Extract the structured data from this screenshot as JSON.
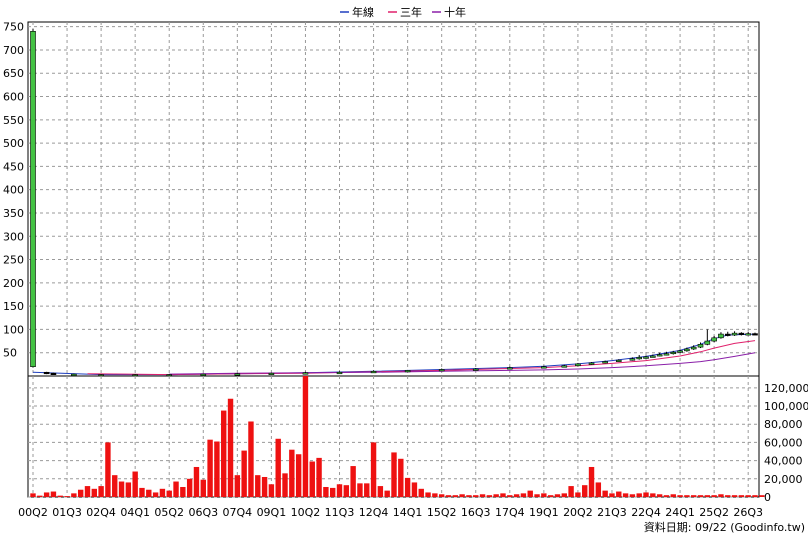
{
  "chart_data": [
    {
      "type": "candlestick",
      "legend": [
        {
          "name": "年線",
          "color": "#1f3fbf"
        },
        {
          "name": "三年",
          "color": "#e0206b"
        },
        {
          "name": "十年",
          "color": "#8a1fa8"
        }
      ],
      "ylim": [
        0,
        760
      ],
      "yticks": [
        50,
        100,
        150,
        200,
        250,
        300,
        350,
        400,
        450,
        500,
        550,
        600,
        650,
        700,
        750
      ],
      "up_color": "#44c244",
      "down_color": "#000000",
      "candles": [
        {
          "q": 0,
          "open": 20,
          "close": 740,
          "high": 745,
          "low": 18
        },
        {
          "q": 2,
          "open": 8,
          "close": 6,
          "high": 9,
          "low": 4
        },
        {
          "q": 3,
          "open": 6,
          "close": 5,
          "high": 7,
          "low": 4
        },
        {
          "q": 6,
          "open": 4,
          "close": 4,
          "high": 5,
          "low": 3
        },
        {
          "q": 10,
          "open": 3,
          "close": 3,
          "high": 4,
          "low": 2
        },
        {
          "q": 15,
          "open": 3,
          "close": 3,
          "high": 4,
          "low": 2
        },
        {
          "q": 20,
          "open": 3,
          "close": 3,
          "high": 4,
          "low": 2
        },
        {
          "q": 25,
          "open": 3,
          "close": 4,
          "high": 5,
          "low": 2
        },
        {
          "q": 30,
          "open": 4,
          "close": 5,
          "high": 6,
          "low": 3
        },
        {
          "q": 35,
          "open": 5,
          "close": 6,
          "high": 7,
          "low": 4
        },
        {
          "q": 40,
          "open": 6,
          "close": 7,
          "high": 9,
          "low": 5
        },
        {
          "q": 45,
          "open": 7,
          "close": 8,
          "high": 10,
          "low": 6
        },
        {
          "q": 50,
          "open": 9,
          "close": 10,
          "high": 12,
          "low": 8
        },
        {
          "q": 55,
          "open": 10,
          "close": 12,
          "high": 13,
          "low": 9
        },
        {
          "q": 60,
          "open": 12,
          "close": 14,
          "high": 16,
          "low": 11
        },
        {
          "q": 65,
          "open": 14,
          "close": 15,
          "high": 17,
          "low": 13
        },
        {
          "q": 70,
          "open": 16,
          "close": 18,
          "high": 20,
          "low": 15
        },
        {
          "q": 75,
          "open": 18,
          "close": 20,
          "high": 22,
          "low": 17
        },
        {
          "q": 78,
          "open": 20,
          "close": 22,
          "high": 24,
          "low": 19
        },
        {
          "q": 80,
          "open": 22,
          "close": 26,
          "high": 28,
          "low": 21
        },
        {
          "q": 82,
          "open": 25,
          "close": 28,
          "high": 30,
          "low": 24
        },
        {
          "q": 84,
          "open": 28,
          "close": 31,
          "high": 33,
          "low": 27
        },
        {
          "q": 86,
          "open": 31,
          "close": 34,
          "high": 36,
          "low": 30
        },
        {
          "q": 88,
          "open": 34,
          "close": 37,
          "high": 40,
          "low": 33
        },
        {
          "q": 89,
          "open": 37,
          "close": 40,
          "high": 45,
          "low": 35
        },
        {
          "q": 90,
          "open": 40,
          "close": 41,
          "high": 44,
          "low": 38
        },
        {
          "q": 91,
          "open": 41,
          "close": 43,
          "high": 46,
          "low": 40
        },
        {
          "q": 92,
          "open": 44,
          "close": 46,
          "high": 50,
          "low": 42
        },
        {
          "q": 93,
          "open": 46,
          "close": 48,
          "high": 52,
          "low": 44
        },
        {
          "q": 94,
          "open": 48,
          "close": 51,
          "high": 54,
          "low": 46
        },
        {
          "q": 95,
          "open": 51,
          "close": 54,
          "high": 57,
          "low": 49
        },
        {
          "q": 96,
          "open": 54,
          "close": 58,
          "high": 61,
          "low": 52
        },
        {
          "q": 97,
          "open": 58,
          "close": 62,
          "high": 66,
          "low": 56
        },
        {
          "q": 98,
          "open": 62,
          "close": 68,
          "high": 72,
          "low": 60
        },
        {
          "q": 99,
          "open": 68,
          "close": 75,
          "high": 100,
          "low": 66
        },
        {
          "q": 100,
          "open": 75,
          "close": 82,
          "high": 86,
          "low": 73
        },
        {
          "q": 101,
          "open": 82,
          "close": 90,
          "high": 94,
          "low": 80
        },
        {
          "q": 102,
          "open": 90,
          "close": 88,
          "high": 95,
          "low": 85
        },
        {
          "q": 103,
          "open": 88,
          "close": 92,
          "high": 96,
          "low": 86
        },
        {
          "q": 104,
          "open": 92,
          "close": 90,
          "high": 94,
          "low": 87
        },
        {
          "q": 105,
          "open": 90,
          "close": 91,
          "high": 95,
          "low": 88
        },
        {
          "q": 106,
          "open": 91,
          "close": 90,
          "high": 93,
          "low": 88
        }
      ],
      "ma_lines": [
        {
          "name": "年線",
          "color": "#1f3fbf",
          "points": [
            [
              0,
              8
            ],
            [
              10,
              3
            ],
            [
              20,
              3
            ],
            [
              30,
              5
            ],
            [
              40,
              7
            ],
            [
              50,
              10
            ],
            [
              60,
              14
            ],
            [
              70,
              18
            ],
            [
              75,
              21
            ],
            [
              80,
              26
            ],
            [
              85,
              33
            ],
            [
              90,
              42
            ],
            [
              95,
              55
            ],
            [
              98,
              68
            ],
            [
              100,
              80
            ],
            [
              102,
              88
            ],
            [
              106,
              90
            ]
          ]
        },
        {
          "name": "三年",
          "color": "#e0206b",
          "points": [
            [
              8,
              5
            ],
            [
              20,
              3
            ],
            [
              30,
              5
            ],
            [
              40,
              6
            ],
            [
              50,
              9
            ],
            [
              60,
              12
            ],
            [
              70,
              16
            ],
            [
              75,
              18
            ],
            [
              80,
              22
            ],
            [
              85,
              27
            ],
            [
              90,
              33
            ],
            [
              95,
              43
            ],
            [
              98,
              52
            ],
            [
              100,
              60
            ],
            [
              103,
              70
            ],
            [
              106,
              76
            ]
          ]
        },
        {
          "name": "十年",
          "color": "#8a1fa8",
          "points": [
            [
              20,
              4
            ],
            [
              30,
              6
            ],
            [
              40,
              7
            ],
            [
              50,
              8
            ],
            [
              60,
              10
            ],
            [
              70,
              12
            ],
            [
              75,
              13
            ],
            [
              80,
              15
            ],
            [
              85,
              18
            ],
            [
              90,
              22
            ],
            [
              95,
              27
            ],
            [
              98,
              31
            ],
            [
              100,
              35
            ],
            [
              103,
              42
            ],
            [
              106,
              50
            ]
          ]
        }
      ]
    },
    {
      "type": "bar",
      "ylim": [
        0,
        133000
      ],
      "yticks": [
        "0",
        "20,000",
        "40,000",
        "60,000",
        "80,000",
        "100,000",
        "120,000"
      ],
      "ytick_values": [
        0,
        20000,
        40000,
        60000,
        80000,
        100000,
        120000
      ],
      "bar_color": "#ee1111",
      "values": [
        4000,
        1500,
        5000,
        6000,
        1500,
        1000,
        4000,
        8000,
        12000,
        9000,
        12000,
        60000,
        24000,
        17000,
        16000,
        28000,
        10000,
        8000,
        5000,
        9000,
        7000,
        17000,
        11000,
        20000,
        33000,
        19000,
        63000,
        61000,
        95000,
        108000,
        24000,
        51000,
        83000,
        24000,
        22000,
        14000,
        64000,
        26000,
        52000,
        47000,
        133000,
        39000,
        43000,
        11000,
        10000,
        14000,
        13000,
        34000,
        15000,
        15000,
        60000,
        12000,
        7000,
        49000,
        42000,
        21000,
        16000,
        9000,
        5000,
        4000,
        3000,
        2000,
        2000,
        3000,
        2000,
        2000,
        3000,
        2000,
        3000,
        4000,
        2000,
        3000,
        4000,
        7000,
        3000,
        4000,
        2000,
        3000,
        4000,
        12000,
        5000,
        13000,
        33000,
        16000,
        7000,
        4000,
        6000,
        4000,
        3000,
        4000,
        5000,
        4000,
        3000,
        2000,
        3000,
        2000,
        2000,
        2000,
        2000,
        2000,
        2000,
        3000,
        2000,
        2000,
        2000,
        2000,
        2000,
        2000
      ]
    }
  ],
  "xlabels": [
    "00Q2",
    "01Q3",
    "02Q4",
    "04Q1",
    "05Q2",
    "06Q3",
    "07Q4",
    "09Q1",
    "10Q2",
    "11Q3",
    "12Q4",
    "14Q1",
    "15Q2",
    "16Q3",
    "17Q4",
    "19Q1",
    "20Q2",
    "21Q3",
    "22Q4",
    "24Q1",
    "25Q2",
    "26Q3"
  ],
  "footer": "資料日期: 09/22  (Goodinfo.tw)"
}
